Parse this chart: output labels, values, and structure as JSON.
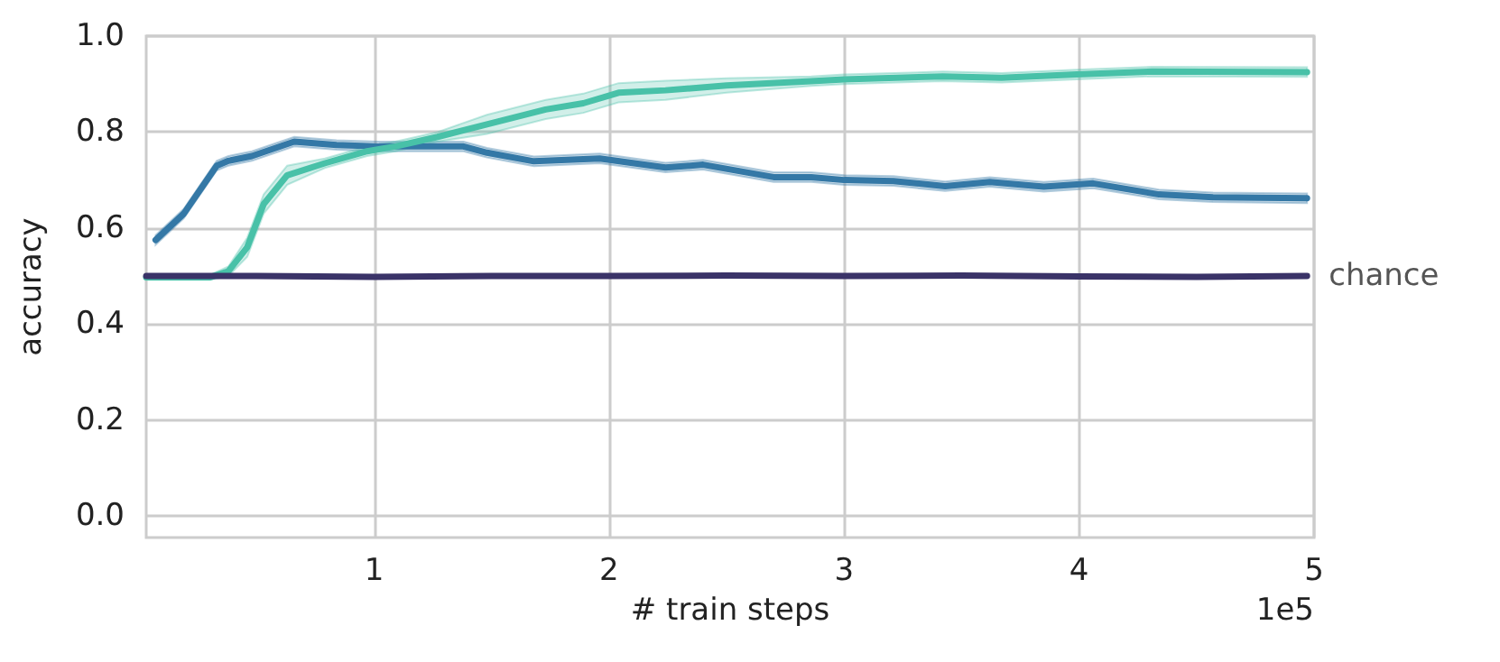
{
  "chart_data": {
    "type": "line",
    "xlabel": "# train steps",
    "ylabel": "accuracy",
    "annotations": [
      "1e5"
    ],
    "xlim": [
      0.03,
      5
    ],
    "ylim": [
      -0.045,
      1.0
    ],
    "xticks": [
      1,
      2,
      3,
      4,
      5
    ],
    "yticks": [
      {
        "value": 0,
        "label": "0.0"
      },
      {
        "value": 0.2,
        "label": "0.2"
      },
      {
        "value": 0.4,
        "label": "0.4"
      },
      {
        "value": 0.6,
        "label": "0.6"
      },
      {
        "value": 0.8,
        "label": "0.8"
      },
      {
        "value": 1.0,
        "label": "1.0"
      }
    ],
    "grid": true,
    "legend": false,
    "marker": "none",
    "line_style": "solid",
    "series": [
      {
        "color": "#3478a6",
        "x": [
          0.07,
          0.19,
          0.33,
          0.38,
          0.48,
          0.66,
          0.84,
          1.02,
          1.38,
          1.48,
          1.68,
          1.96,
          2.24,
          2.4,
          2.7,
          2.86,
          3.0,
          3.21,
          3.43,
          3.62,
          3.85,
          4.06,
          4.34,
          4.57,
          4.97
        ],
        "values": [
          0.575,
          0.63,
          0.73,
          0.74,
          0.75,
          0.78,
          0.773,
          0.77,
          0.77,
          0.757,
          0.739,
          0.745,
          0.726,
          0.732,
          0.706,
          0.706,
          0.7,
          0.698,
          0.687,
          0.696,
          0.686,
          0.693,
          0.67,
          0.664,
          0.662
        ],
        "lower": [
          0.565,
          0.62,
          0.72,
          0.73,
          0.74,
          0.77,
          0.763,
          0.76,
          0.76,
          0.747,
          0.729,
          0.735,
          0.716,
          0.722,
          0.696,
          0.696,
          0.69,
          0.688,
          0.677,
          0.686,
          0.676,
          0.683,
          0.66,
          0.654,
          0.652
        ],
        "upper": [
          0.585,
          0.64,
          0.74,
          0.75,
          0.76,
          0.79,
          0.783,
          0.78,
          0.78,
          0.767,
          0.749,
          0.755,
          0.736,
          0.742,
          0.716,
          0.716,
          0.71,
          0.708,
          0.697,
          0.706,
          0.696,
          0.703,
          0.68,
          0.674,
          0.672
        ]
      },
      {
        "color": "#48c1a8",
        "x": [
          0.03,
          0.3,
          0.38,
          0.46,
          0.53,
          0.63,
          0.79,
          0.97,
          1.09,
          1.27,
          1.48,
          1.73,
          1.89,
          2.04,
          2.24,
          2.5,
          2.86,
          3.0,
          3.42,
          3.67,
          3.99,
          4.31,
          4.97
        ],
        "values": [
          0.497,
          0.497,
          0.51,
          0.56,
          0.65,
          0.71,
          0.735,
          0.76,
          0.77,
          0.79,
          0.816,
          0.847,
          0.86,
          0.882,
          0.887,
          0.897,
          0.906,
          0.91,
          0.916,
          0.913,
          0.92,
          0.926,
          0.925
        ],
        "lower": [
          0.492,
          0.492,
          0.5,
          0.54,
          0.63,
          0.69,
          0.725,
          0.75,
          0.76,
          0.78,
          0.796,
          0.827,
          0.84,
          0.862,
          0.867,
          0.882,
          0.896,
          0.9,
          0.906,
          0.903,
          0.91,
          0.916,
          0.915
        ],
        "upper": [
          0.502,
          0.502,
          0.52,
          0.58,
          0.67,
          0.73,
          0.745,
          0.77,
          0.78,
          0.8,
          0.836,
          0.867,
          0.88,
          0.902,
          0.907,
          0.912,
          0.916,
          0.92,
          0.926,
          0.923,
          0.93,
          0.936,
          0.935
        ]
      },
      {
        "name": "chance",
        "color": "#3a3368",
        "x": [
          0.03,
          0.5,
          1.0,
          1.5,
          2.0,
          2.5,
          3.0,
          3.5,
          4.0,
          4.5,
          4.97
        ],
        "values": [
          0.5,
          0.5,
          0.498,
          0.5,
          0.5,
          0.501,
          0.5,
          0.501,
          0.499,
          0.498,
          0.5
        ]
      }
    ]
  }
}
